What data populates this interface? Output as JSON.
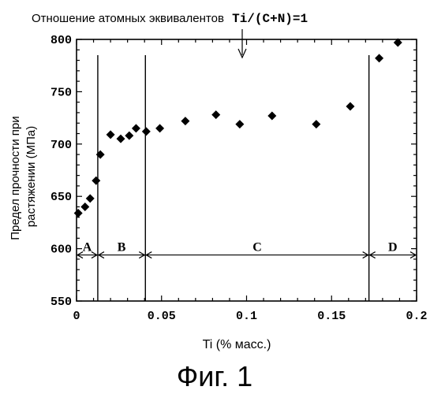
{
  "chart_data": {
    "type": "scatter",
    "top_annotation": {
      "prefix": "Отношение атомных эквивалентов",
      "formula": "Ti/(C+N)=1"
    },
    "xlabel": "Ti (% масс.)",
    "ylabel_line1": "Предел прочности при",
    "ylabel_line2": "растяжении (МПа)",
    "xlim": [
      0,
      0.2
    ],
    "ylim": [
      550,
      800
    ],
    "x_ticks": [
      {
        "value": 0,
        "label": "0"
      },
      {
        "value": 0.05,
        "label": "0.05"
      },
      {
        "value": 0.1,
        "label": "0.1"
      },
      {
        "value": 0.15,
        "label": "0.15"
      },
      {
        "value": 0.2,
        "label": "0.2"
      }
    ],
    "y_ticks": [
      {
        "value": 550,
        "label": "550"
      },
      {
        "value": 600,
        "label": "600"
      },
      {
        "value": 650,
        "label": "650"
      },
      {
        "value": 700,
        "label": "700"
      },
      {
        "value": 750,
        "label": "750"
      },
      {
        "value": 800,
        "label": "800"
      }
    ],
    "region_boundaries": [
      0.0125,
      0.0405,
      0.172
    ],
    "regions": [
      {
        "label": "A",
        "from": 0,
        "to": 0.0125
      },
      {
        "label": "B",
        "from": 0.0125,
        "to": 0.0405
      },
      {
        "label": "C",
        "from": 0.0405,
        "to": 0.172
      },
      {
        "label": "D",
        "from": 0.172,
        "to": 0.2
      }
    ],
    "points": [
      {
        "x": 0.001,
        "y": 634
      },
      {
        "x": 0.005,
        "y": 640
      },
      {
        "x": 0.008,
        "y": 648
      },
      {
        "x": 0.0115,
        "y": 665
      },
      {
        "x": 0.014,
        "y": 690
      },
      {
        "x": 0.02,
        "y": 709
      },
      {
        "x": 0.026,
        "y": 705
      },
      {
        "x": 0.031,
        "y": 708
      },
      {
        "x": 0.035,
        "y": 715
      },
      {
        "x": 0.041,
        "y": 712
      },
      {
        "x": 0.049,
        "y": 715
      },
      {
        "x": 0.064,
        "y": 722
      },
      {
        "x": 0.082,
        "y": 728
      },
      {
        "x": 0.096,
        "y": 719
      },
      {
        "x": 0.115,
        "y": 727
      },
      {
        "x": 0.141,
        "y": 719
      },
      {
        "x": 0.161,
        "y": 736
      },
      {
        "x": 0.178,
        "y": 782
      },
      {
        "x": 0.189,
        "y": 797
      }
    ],
    "grid": false,
    "legend": "none"
  },
  "figure_caption": "Фиг. 1"
}
